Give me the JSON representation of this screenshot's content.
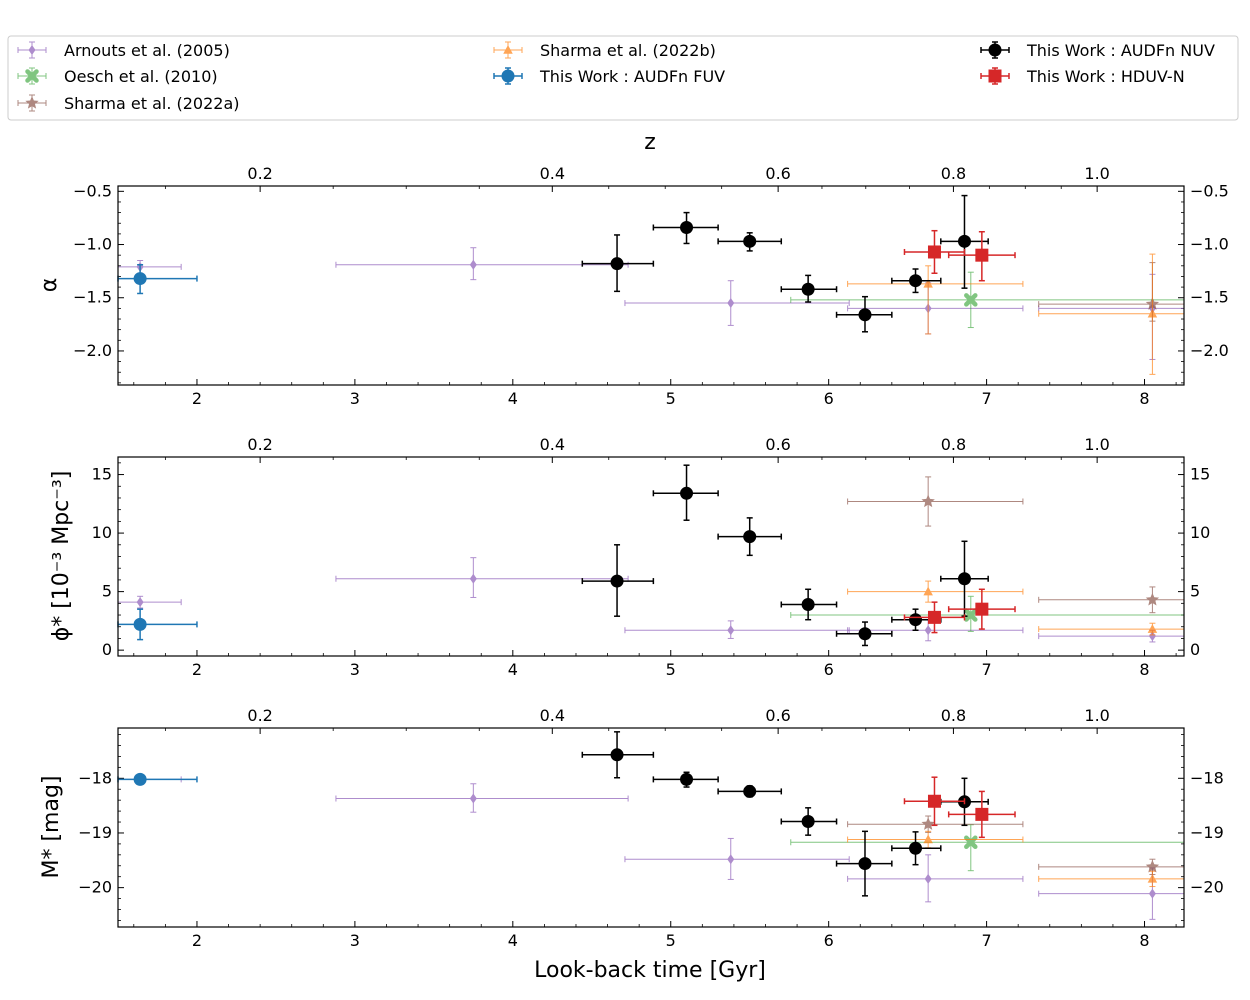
{
  "chart_data": {
    "type": "scatter",
    "title": "",
    "xlabel": "Look-back time [Gyr]",
    "top_xlabel": "z",
    "xlim": [
      1.5,
      8.25
    ],
    "x_ticks": [
      2,
      3,
      4,
      5,
      6,
      7,
      8
    ],
    "top_x_ticks": [
      {
        "z": 0.2,
        "t": 2.4
      },
      {
        "z": 0.4,
        "t": 4.25
      },
      {
        "z": 0.6,
        "t": 5.68
      },
      {
        "z": 0.8,
        "t": 6.79
      },
      {
        "z": 1.0,
        "t": 7.7
      }
    ],
    "legend": {
      "location": "top",
      "entries": [
        {
          "series": "arnouts",
          "label": "Arnouts et al. (2005)"
        },
        {
          "series": "oesch",
          "label": "Oesch et al. (2010)"
        },
        {
          "series": "sharma22a",
          "label": "Sharma et al. (2022a)"
        },
        {
          "series": "sharma22b",
          "label": "Sharma et al. (2022b)"
        },
        {
          "series": "fuv",
          "label": "This Work : AUDFn FUV"
        },
        {
          "series": "nuv",
          "label": "This Work : AUDFn NUV"
        },
        {
          "series": "hduv",
          "label": "This Work : HDUV-N"
        }
      ]
    },
    "series_styles": {
      "arnouts": {
        "color": "#9467bd",
        "marker": "diamond",
        "size": 5,
        "lw": 1,
        "alpha": 0.75
      },
      "oesch": {
        "color": "#2ca02c",
        "marker": "x",
        "size": 6,
        "lw": 1,
        "alpha": 0.6
      },
      "sharma22a": {
        "color": "#8c564b",
        "marker": "star",
        "size": 7,
        "lw": 1,
        "alpha": 0.7
      },
      "sharma22b": {
        "color": "#ff7f0e",
        "marker": "triangle",
        "size": 5,
        "lw": 1,
        "alpha": 0.7
      },
      "fuv": {
        "color": "#1f77b4",
        "marker": "circle",
        "size": 6.5,
        "lw": 1.5,
        "alpha": 1
      },
      "nuv": {
        "color": "#000000",
        "marker": "circle",
        "size": 6.5,
        "lw": 1.5,
        "alpha": 1
      },
      "hduv": {
        "color": "#d62728",
        "marker": "square",
        "size": 6.5,
        "lw": 1.5,
        "alpha": 1
      }
    },
    "panels": [
      {
        "key": "alpha",
        "ylabel": "α",
        "ylim": [
          -2.32,
          -0.45
        ],
        "y_ticks": [
          -0.5,
          -1.0,
          -1.5,
          -2.0
        ],
        "y_tick_labels": [
          "−0.5",
          "−1.0",
          "−1.5",
          "−2.0"
        ],
        "y_minor": 0.1,
        "series": {
          "arnouts": [
            {
              "x": 1.64,
              "xlo": 1.5,
              "xhi": 1.9,
              "y": -1.21,
              "ylo": -1.27,
              "yhi": -1.15
            },
            {
              "x": 3.75,
              "xlo": 2.88,
              "xhi": 4.73,
              "y": -1.19,
              "ylo": -1.33,
              "yhi": -1.03
            },
            {
              "x": 5.38,
              "xlo": 4.71,
              "xhi": 6.13,
              "y": -1.55,
              "ylo": -1.76,
              "yhi": -1.34
            },
            {
              "x": 6.63,
              "xlo": 6.12,
              "xhi": 7.23,
              "y": -1.6,
              "ylo": -1.84,
              "yhi": -1.36
            },
            {
              "x": 8.05,
              "xlo": 7.33,
              "xhi": 8.25,
              "y": -1.6,
              "ylo": -2.08,
              "yhi": -1.28
            }
          ],
          "oesch": [
            {
              "x": 6.9,
              "xlo": 5.76,
              "xhi": 8.25,
              "y": -1.52,
              "ylo": -1.78,
              "yhi": -1.26
            }
          ],
          "sharma22a": [
            {
              "x": 8.05,
              "xlo": 7.33,
              "xhi": 8.25,
              "y": -1.56,
              "ylo": -1.72,
              "yhi": -1.17
            }
          ],
          "sharma22b": [
            {
              "x": 6.63,
              "xlo": 6.12,
              "xhi": 7.23,
              "y": -1.37,
              "ylo": -1.84,
              "yhi": -1.2
            },
            {
              "x": 8.05,
              "xlo": 7.33,
              "xhi": 8.25,
              "y": -1.65,
              "ylo": -2.22,
              "yhi": -1.09
            }
          ],
          "fuv": [
            {
              "x": 1.64,
              "xlo": 1.5,
              "xhi": 2.0,
              "y": -1.32,
              "ylo": -1.46,
              "yhi": -1.19
            }
          ],
          "nuv": [
            {
              "x": 4.66,
              "xlo": 4.44,
              "xhi": 4.89,
              "y": -1.18,
              "ylo": -1.44,
              "yhi": -0.91
            },
            {
              "x": 5.1,
              "xlo": 4.89,
              "xhi": 5.3,
              "y": -0.84,
              "ylo": -0.99,
              "yhi": -0.7
            },
            {
              "x": 5.5,
              "xlo": 5.3,
              "xhi": 5.7,
              "y": -0.97,
              "ylo": -1.06,
              "yhi": -0.89
            },
            {
              "x": 5.87,
              "xlo": 5.7,
              "xhi": 6.05,
              "y": -1.42,
              "ylo": -1.54,
              "yhi": -1.29
            },
            {
              "x": 6.23,
              "xlo": 6.05,
              "xhi": 6.4,
              "y": -1.66,
              "ylo": -1.82,
              "yhi": -1.49
            },
            {
              "x": 6.55,
              "xlo": 6.4,
              "xhi": 6.71,
              "y": -1.34,
              "ylo": -1.45,
              "yhi": -1.23
            },
            {
              "x": 6.86,
              "xlo": 6.71,
              "xhi": 7.01,
              "y": -0.97,
              "ylo": -1.41,
              "yhi": -0.54
            }
          ],
          "hduv": [
            {
              "x": 6.67,
              "xlo": 6.48,
              "xhi": 6.86,
              "y": -1.07,
              "ylo": -1.27,
              "yhi": -0.87
            },
            {
              "x": 6.97,
              "xlo": 6.76,
              "xhi": 7.18,
              "y": -1.1,
              "ylo": -1.34,
              "yhi": -0.88
            }
          ]
        }
      },
      {
        "key": "phi",
        "ylabel": "ϕ* [10⁻³ Mpc⁻³]",
        "ylim": [
          -0.5,
          16.5
        ],
        "y_ticks": [
          0,
          5,
          10,
          15
        ],
        "y_tick_labels": [
          "0",
          "5",
          "10",
          "15"
        ],
        "y_minor": 1,
        "series": {
          "arnouts": [
            {
              "x": 1.64,
              "xlo": 1.5,
              "xhi": 1.9,
              "y": 4.1,
              "ylo": 3.6,
              "yhi": 4.6
            },
            {
              "x": 3.75,
              "xlo": 2.88,
              "xhi": 4.73,
              "y": 6.1,
              "ylo": 4.5,
              "yhi": 7.9
            },
            {
              "x": 5.38,
              "xlo": 4.71,
              "xhi": 6.13,
              "y": 1.7,
              "ylo": 1.0,
              "yhi": 2.5
            },
            {
              "x": 6.63,
              "xlo": 6.12,
              "xhi": 7.23,
              "y": 1.7,
              "ylo": 0.8,
              "yhi": 2.6
            },
            {
              "x": 8.05,
              "xlo": 7.33,
              "xhi": 8.25,
              "y": 1.2,
              "ylo": 0.7,
              "yhi": 1.7
            }
          ],
          "oesch": [
            {
              "x": 6.9,
              "xlo": 5.76,
              "xhi": 8.25,
              "y": 3.0,
              "ylo": 1.6,
              "yhi": 4.6
            }
          ],
          "sharma22a": [
            {
              "x": 6.63,
              "xlo": 6.12,
              "xhi": 7.23,
              "y": 12.7,
              "ylo": 10.6,
              "yhi": 14.8
            },
            {
              "x": 8.05,
              "xlo": 7.33,
              "xhi": 8.25,
              "y": 4.3,
              "ylo": 3.2,
              "yhi": 5.4
            }
          ],
          "sharma22b": [
            {
              "x": 6.63,
              "xlo": 6.12,
              "xhi": 7.23,
              "y": 5.0,
              "ylo": 4.1,
              "yhi": 5.9
            },
            {
              "x": 8.05,
              "xlo": 7.33,
              "xhi": 8.25,
              "y": 1.8,
              "ylo": 1.3,
              "yhi": 2.3
            }
          ],
          "fuv": [
            {
              "x": 1.64,
              "xlo": 1.5,
              "xhi": 2.0,
              "y": 2.2,
              "ylo": 0.9,
              "yhi": 3.5
            }
          ],
          "nuv": [
            {
              "x": 4.66,
              "xlo": 4.44,
              "xhi": 4.89,
              "y": 5.9,
              "ylo": 2.9,
              "yhi": 9.0
            },
            {
              "x": 5.1,
              "xlo": 4.89,
              "xhi": 5.3,
              "y": 13.4,
              "ylo": 11.1,
              "yhi": 15.8
            },
            {
              "x": 5.5,
              "xlo": 5.3,
              "xhi": 5.7,
              "y": 9.7,
              "ylo": 8.1,
              "yhi": 11.3
            },
            {
              "x": 5.87,
              "xlo": 5.7,
              "xhi": 6.05,
              "y": 3.9,
              "ylo": 2.6,
              "yhi": 5.2
            },
            {
              "x": 6.23,
              "xlo": 6.05,
              "xhi": 6.4,
              "y": 1.4,
              "ylo": 0.4,
              "yhi": 2.4
            },
            {
              "x": 6.55,
              "xlo": 6.4,
              "xhi": 6.71,
              "y": 2.6,
              "ylo": 1.7,
              "yhi": 3.5
            },
            {
              "x": 6.86,
              "xlo": 6.71,
              "xhi": 7.01,
              "y": 6.1,
              "ylo": 2.9,
              "yhi": 9.3
            }
          ],
          "hduv": [
            {
              "x": 6.67,
              "xlo": 6.48,
              "xhi": 6.86,
              "y": 2.8,
              "ylo": 1.5,
              "yhi": 4.1
            },
            {
              "x": 6.97,
              "xlo": 6.76,
              "xhi": 7.18,
              "y": 3.5,
              "ylo": 1.8,
              "yhi": 5.2
            }
          ]
        }
      },
      {
        "key": "mstar",
        "ylabel": "M* [mag]",
        "ylim": [
          -20.72,
          -17.08
        ],
        "y_ticks": [
          -18,
          -19,
          -20
        ],
        "y_tick_labels": [
          "−18",
          "−19",
          "−20"
        ],
        "y_minor": 0.2,
        "series": {
          "arnouts": [
            {
              "x": 1.64,
              "xlo": 1.5,
              "xhi": 1.9,
              "y": -18.02,
              "ylo": -18.07,
              "yhi": -17.97
            },
            {
              "x": 3.75,
              "xlo": 2.88,
              "xhi": 4.73,
              "y": -18.37,
              "ylo": -18.62,
              "yhi": -18.1
            },
            {
              "x": 5.38,
              "xlo": 4.71,
              "xhi": 6.13,
              "y": -19.48,
              "ylo": -19.85,
              "yhi": -19.1
            },
            {
              "x": 6.63,
              "xlo": 6.12,
              "xhi": 7.23,
              "y": -19.84,
              "ylo": -20.26,
              "yhi": -19.4
            },
            {
              "x": 8.05,
              "xlo": 7.33,
              "xhi": 8.25,
              "y": -20.11,
              "ylo": -20.58,
              "yhi": -19.64
            }
          ],
          "oesch": [
            {
              "x": 6.9,
              "xlo": 5.76,
              "xhi": 8.25,
              "y": -19.17,
              "ylo": -19.69,
              "yhi": -18.85
            }
          ],
          "sharma22a": [
            {
              "x": 6.63,
              "xlo": 6.12,
              "xhi": 7.23,
              "y": -18.84,
              "ylo": -18.99,
              "yhi": -18.69
            },
            {
              "x": 8.05,
              "xlo": 7.33,
              "xhi": 8.25,
              "y": -19.62,
              "ylo": -19.76,
              "yhi": -19.48
            }
          ],
          "sharma22b": [
            {
              "x": 6.63,
              "xlo": 6.12,
              "xhi": 7.23,
              "y": -19.12,
              "ylo": -19.27,
              "yhi": -18.97
            },
            {
              "x": 8.05,
              "xlo": 7.33,
              "xhi": 8.25,
              "y": -19.84,
              "ylo": -19.98,
              "yhi": -19.7
            }
          ],
          "fuv": [
            {
              "x": 1.64,
              "xlo": 1.5,
              "xhi": 2.0,
              "y": -18.02,
              "ylo": -18.08,
              "yhi": -17.96
            }
          ],
          "nuv": [
            {
              "x": 4.66,
              "xlo": 4.44,
              "xhi": 4.89,
              "y": -17.57,
              "ylo": -17.99,
              "yhi": -17.15
            },
            {
              "x": 5.1,
              "xlo": 4.89,
              "xhi": 5.3,
              "y": -18.02,
              "ylo": -18.16,
              "yhi": -17.89
            },
            {
              "x": 5.5,
              "xlo": 5.3,
              "xhi": 5.7,
              "y": -18.24,
              "ylo": -18.34,
              "yhi": -18.14
            },
            {
              "x": 5.87,
              "xlo": 5.7,
              "xhi": 6.05,
              "y": -18.79,
              "ylo": -19.04,
              "yhi": -18.54
            },
            {
              "x": 6.23,
              "xlo": 6.05,
              "xhi": 6.4,
              "y": -19.56,
              "ylo": -20.15,
              "yhi": -18.97
            },
            {
              "x": 6.55,
              "xlo": 6.4,
              "xhi": 6.71,
              "y": -19.28,
              "ylo": -19.58,
              "yhi": -18.98
            },
            {
              "x": 6.86,
              "xlo": 6.71,
              "xhi": 7.01,
              "y": -18.43,
              "ylo": -18.86,
              "yhi": -18.0
            }
          ],
          "hduv": [
            {
              "x": 6.67,
              "xlo": 6.48,
              "xhi": 6.86,
              "y": -18.42,
              "ylo": -18.86,
              "yhi": -17.98
            },
            {
              "x": 6.97,
              "xlo": 6.76,
              "xhi": 7.18,
              "y": -18.66,
              "ylo": -19.08,
              "yhi": -18.24
            }
          ]
        }
      }
    ]
  }
}
